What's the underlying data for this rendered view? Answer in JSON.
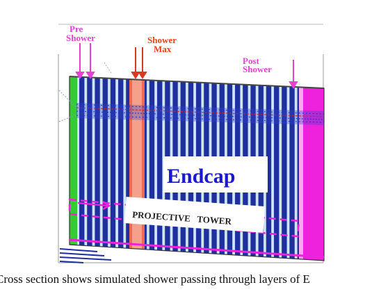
{
  "figure": {
    "labels": {
      "pre_shower_line1": "Pre",
      "pre_shower_line2": "Shower",
      "shower_max_line1": "Shower",
      "shower_max_line2": "Max",
      "post_shower_line1": "Post",
      "post_shower_line2": "Shower",
      "endcap": "Endcap",
      "projective_tower": "PROJECTIVE   TOWER"
    },
    "colors": {
      "pre_shower_label": "#e83fd4",
      "shower_max_label": "#f0401a",
      "post_shower_label": "#e83fd4",
      "endcap_text": "#1a1acc",
      "slat_blue": "#1f2f9e",
      "slat_light": "#cfe6f2",
      "shower_max_fill": "#f06a50",
      "pre_shower_bar": "#33cc33",
      "post_shower_bar": "#ee22dd",
      "tower_outline": "#ee22dd"
    }
  },
  "caption": "Cross section shows simulated shower passing through layers of E"
}
